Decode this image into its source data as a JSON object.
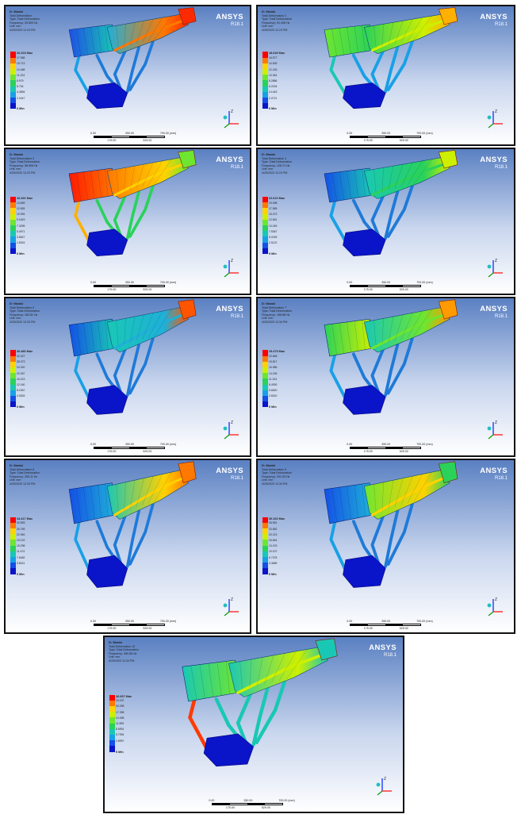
{
  "brand": {
    "name": "ANSYS",
    "release": "R18.1"
  },
  "scale_bar": {
    "top_labels": [
      "0.00",
      "350.00",
      "700.00 (mm)"
    ],
    "bottom_labels": [
      "175.00",
      "525.00"
    ]
  },
  "axis_label": "Z",
  "colors": {
    "background_top": "#5a80c2",
    "background_bottom": "#ffffff",
    "legend": [
      "#ff0000",
      "#ff7800",
      "#ffd200",
      "#cdf000",
      "#6ee630",
      "#2ad25a",
      "#19c8b4",
      "#18a0e6",
      "#1450e6",
      "#0a14c8"
    ]
  },
  "panels": [
    {
      "model": "D: Modal",
      "title": "Total Deformation",
      "type_line": "Type: Total Deformation",
      "frequency": "Frequency: 39.809 Hz",
      "unit": "Unit: mm",
      "date": "4/25/2020 12:23 PM",
      "max": "20.203 Max",
      "values": [
        "17.958",
        "15.713",
        "13.468",
        "11.224",
        "8.979",
        "6.734",
        "4.4894",
        "2.2447"
      ],
      "min": "0 Min"
    },
    {
      "model": "D: Modal",
      "title": "Total Deformation 2",
      "type_line": "Type: Total Deformation",
      "frequency": "Frequency: 91.408 Hz",
      "unit": "Unit: mm",
      "date": "4/25/2020 12:23 PM",
      "max": "18.649 Max",
      "values": [
        "16.577",
        "14.505",
        "12.433",
        "10.361",
        "8.2886",
        "6.2164",
        "4.1443",
        "2.0721"
      ],
      "min": "0 Min"
    },
    {
      "model": "D: Modal",
      "title": "Total Deformation 3",
      "type_line": "Type: Total Deformation",
      "frequency": "Frequency: 98.906 Hz",
      "unit": "Unit: mm",
      "date": "4/25/2020 12:23 PM",
      "max": "16.491 Max",
      "values": [
        "14.659",
        "12.826",
        "10.994",
        "9.1619",
        "7.3295",
        "5.4971",
        "3.6647",
        "1.8324"
      ],
      "min": "0 Min"
    },
    {
      "model": "D: Modal",
      "title": "Total Deformation 4",
      "type_line": "Type: Total Deformation",
      "frequency": "Frequency: 128.71 Hz",
      "unit": "Unit: mm",
      "date": "4/25/2020 12:23 PM",
      "max": "22.610 Max",
      "values": [
        "20.098",
        "17.585",
        "15.073",
        "12.561",
        "10.049",
        "7.5367",
        "5.0245",
        "2.5122"
      ],
      "min": "0 Min"
    },
    {
      "model": "D: Modal",
      "title": "Total Deformation 5",
      "type_line": "Type: Total Deformation",
      "frequency": "Frequency: 160.81 Hz",
      "unit": "Unit: mm",
      "date": "4/25/2020 12:23 PM",
      "max": "36.480 Max",
      "values": [
        "32.427",
        "28.373",
        "24.320",
        "20.267",
        "16.213",
        "12.160",
        "8.1067",
        "4.0533"
      ],
      "min": "0 Min"
    },
    {
      "model": "D: Modal",
      "title": "Total Deformation 7",
      "type_line": "Type: Total Deformation",
      "frequency": "Frequency: 188.88 Hz",
      "unit": "Unit: mm",
      "date": "4/25/2020 12:34 PM",
      "max": "25.479 Max",
      "values": [
        "22.648",
        "19.817",
        "16.986",
        "14.155",
        "11.324",
        "8.4930",
        "5.6620",
        "2.8310"
      ],
      "min": "0 Min"
    },
    {
      "model": "D: Modal",
      "title": "Total Deformation 8",
      "type_line": "Type: Total Deformation",
      "frequency": "Frequency: 255.11 Hz",
      "unit": "Unit: mm",
      "date": "4/25/2020 12:34 PM",
      "max": "34.417 Max",
      "values": [
        "30.593",
        "26.769",
        "22.946",
        "19.122",
        "15.298",
        "11.474",
        "7.6482",
        "3.8241"
      ],
      "min": "0 Min"
    },
    {
      "model": "D: Modal",
      "title": "Total Deformation 9",
      "type_line": "Type: Total Deformation",
      "frequency": "Frequency: 291.53 Hz",
      "unit": "Unit: mm",
      "date": "4/25/2020 12:34 PM",
      "max": "30.320 Max",
      "values": [
        "26.951",
        "23.582",
        "20.213",
        "16.844",
        "13.476",
        "10.107",
        "6.7378",
        "3.3689"
      ],
      "min": "0 Min"
    },
    {
      "model": "D: Modal",
      "title": "Total Deformation 10",
      "type_line": "Type: Total Deformation",
      "frequency": "Frequency: 450.85 Hz",
      "unit": "Unit: mm",
      "date": "4/25/2020 12:34 PM",
      "max": "26.097 Max",
      "values": [
        "23.197",
        "20.298",
        "17.398",
        "14.498",
        "11.599",
        "8.6991",
        "5.7994",
        "2.8997"
      ],
      "min": "0 Min"
    }
  ]
}
